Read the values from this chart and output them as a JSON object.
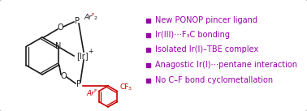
{
  "background_color": "#ffffff",
  "border_color": "#bbbbbb",
  "bullet_color": "#9900aa",
  "text_color": "#9900aa",
  "red_color": "#cc0000",
  "black_color": "#1a1a1a",
  "bullet_items": [
    "New PONOP pincer ligand",
    "Ir(III)⋯F₃C bonding",
    "Isolated Ir(I)–TBE complex",
    "Anagostic Ir(I)⋯pentane interaction",
    "No C–F bond cyclometallation"
  ],
  "figsize": [
    3.78,
    1.37
  ],
  "dpi": 100
}
